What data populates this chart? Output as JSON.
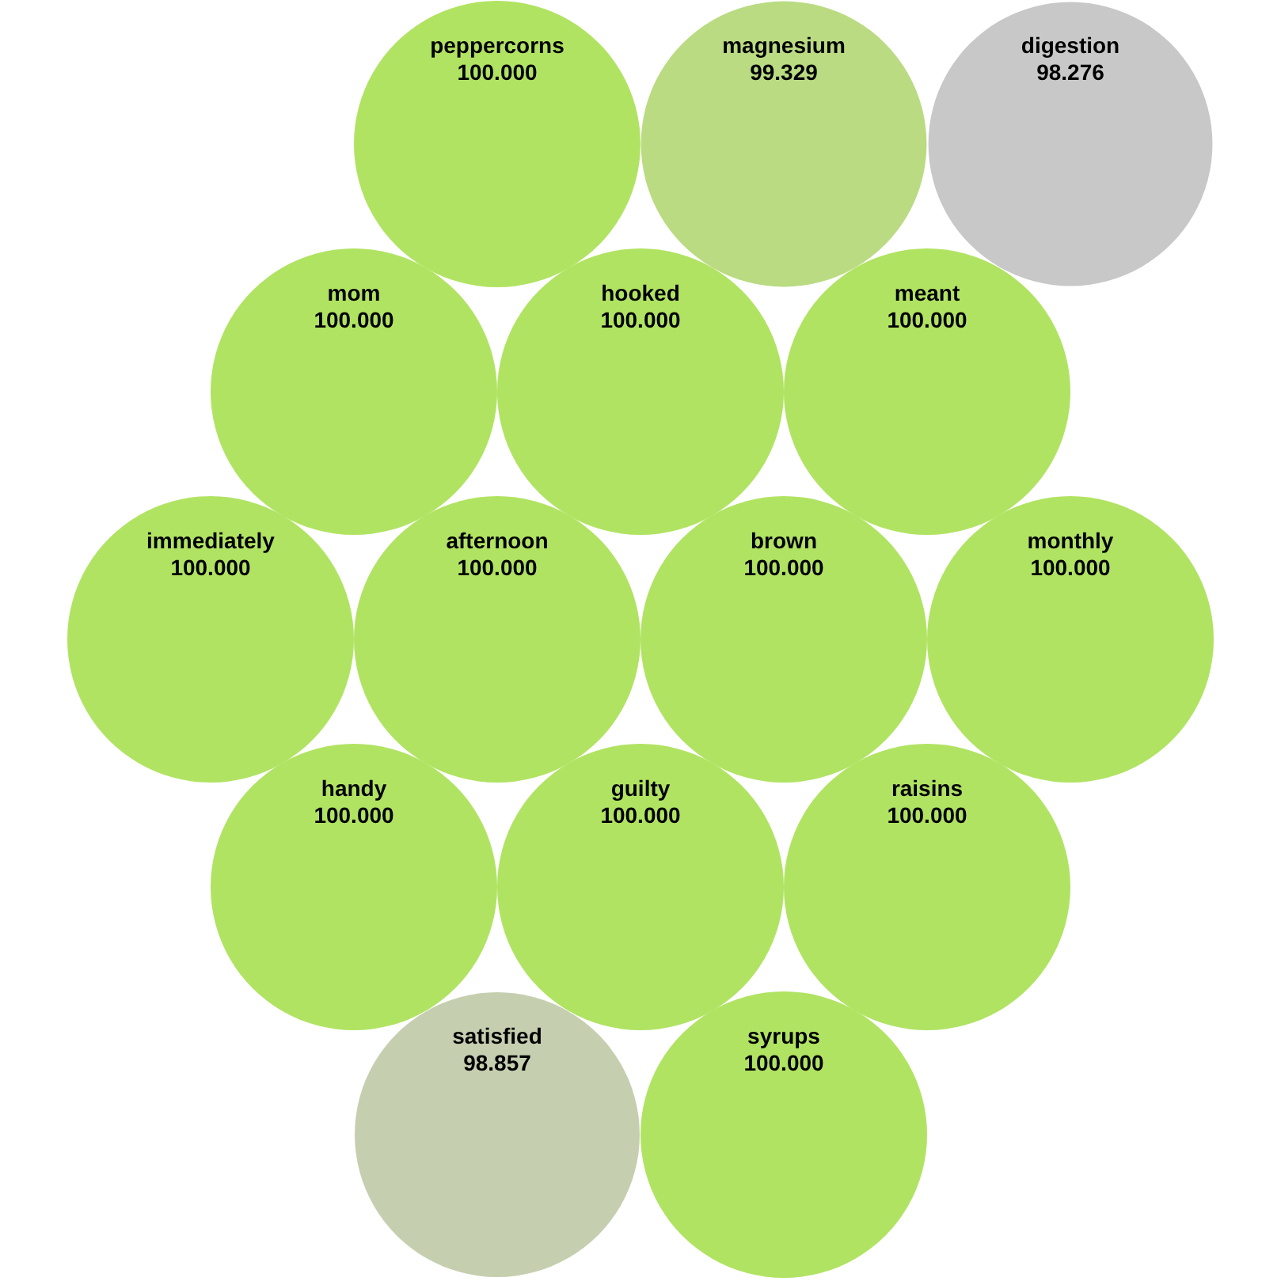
{
  "chart_data": {
    "type": "other",
    "categories": [
      "peppercorns",
      "magnesium",
      "digestion",
      "mom",
      "hooked",
      "meant",
      "immediately",
      "afternoon",
      "brown",
      "monthly",
      "handy",
      "guilty",
      "raisins",
      "satisfied",
      "syrups"
    ],
    "values": [
      100,
      99.329,
      98.276,
      100,
      100,
      100,
      100,
      100,
      100,
      100,
      100,
      100,
      100,
      98.857,
      100
    ],
    "value_labels": [
      "100.000",
      "99.329",
      "98.276",
      "100.000",
      "100.000",
      "100.000",
      "100.000",
      "100.000",
      "100.000",
      "100.000",
      "100.000",
      "100.000",
      "100.000",
      "98.857",
      "100.000"
    ],
    "colors": [
      "#b1e363",
      "#badb82",
      "#c8c8c8",
      "#b1e363",
      "#b1e363",
      "#b1e363",
      "#b1e363",
      "#b1e363",
      "#b1e363",
      "#b1e363",
      "#b1e363",
      "#b1e363",
      "#b1e363",
      "#c5cfb0",
      "#b1e363"
    ]
  }
}
